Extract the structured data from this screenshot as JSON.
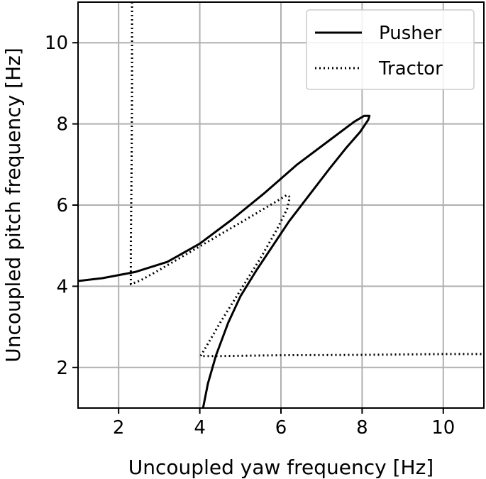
{
  "chart_data": {
    "type": "line",
    "xlabel": "Uncoupled yaw frequency [Hz]",
    "ylabel": "Uncoupled pitch frequency [Hz]",
    "xlim": [
      1,
      11
    ],
    "ylim": [
      1,
      11
    ],
    "xticks": [
      2,
      4,
      6,
      8,
      10
    ],
    "yticks": [
      2,
      4,
      6,
      8,
      10
    ],
    "grid": true,
    "legend_position": "top-right",
    "series": [
      {
        "name": "Pusher",
        "style": "solid",
        "color": "#000000",
        "points": [
          [
            4.08,
            1.0
          ],
          [
            4.2,
            1.6
          ],
          [
            4.4,
            2.3
          ],
          [
            4.7,
            3.1
          ],
          [
            5.0,
            3.75
          ],
          [
            5.4,
            4.4
          ],
          [
            5.8,
            5.0
          ],
          [
            6.2,
            5.6
          ],
          [
            6.7,
            6.25
          ],
          [
            7.2,
            6.9
          ],
          [
            7.6,
            7.4
          ],
          [
            7.95,
            7.8
          ],
          [
            8.15,
            8.1
          ],
          [
            8.18,
            8.2
          ],
          [
            8.05,
            8.2
          ],
          [
            7.8,
            8.05
          ],
          [
            7.2,
            7.6
          ],
          [
            6.4,
            7.0
          ],
          [
            5.6,
            6.3
          ],
          [
            4.8,
            5.65
          ],
          [
            4.0,
            5.05
          ],
          [
            3.2,
            4.6
          ],
          [
            2.4,
            4.35
          ],
          [
            1.6,
            4.2
          ],
          [
            1.0,
            4.13
          ]
        ]
      },
      {
        "name": "Tractor",
        "style": "dotted",
        "color": "#000000",
        "points": [
          [
            2.33,
            11.0
          ],
          [
            2.33,
            9.0
          ],
          [
            2.32,
            7.0
          ],
          [
            2.3,
            5.0
          ],
          [
            2.3,
            4.3
          ],
          [
            2.3,
            4.05
          ],
          [
            2.55,
            4.15
          ],
          [
            3.0,
            4.4
          ],
          [
            3.6,
            4.75
          ],
          [
            4.2,
            5.1
          ],
          [
            4.8,
            5.45
          ],
          [
            5.4,
            5.8
          ],
          [
            5.9,
            6.1
          ],
          [
            6.15,
            6.25
          ],
          [
            6.22,
            6.2
          ],
          [
            6.15,
            5.9
          ],
          [
            5.9,
            5.4
          ],
          [
            5.5,
            4.7
          ],
          [
            5.0,
            3.9
          ],
          [
            4.5,
            3.1
          ],
          [
            4.15,
            2.5
          ],
          [
            4.02,
            2.28
          ],
          [
            4.4,
            2.28
          ],
          [
            6.0,
            2.3
          ],
          [
            8.0,
            2.31
          ],
          [
            10.0,
            2.33
          ],
          [
            11.0,
            2.33
          ]
        ]
      }
    ]
  }
}
